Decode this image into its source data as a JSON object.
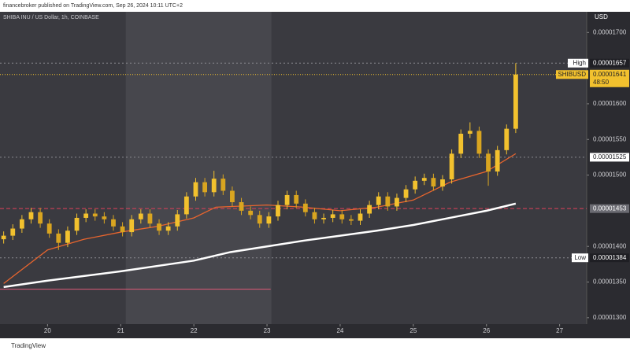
{
  "header": "financebroker published on TradingView.com, Sep 26, 2024 10:11 UTC+2",
  "footer": "TradingView",
  "chart_data": {
    "type": "candlestick",
    "title": "SHIBA INU / US Dollar, 1h, COINBASE",
    "currency": "USD",
    "up_color": "#f2c12e",
    "down_color": "#d9a520",
    "x": [
      19.4,
      19.525,
      19.65,
      19.775,
      19.9,
      20.025,
      20.15,
      20.275,
      20.4,
      20.525,
      20.65,
      20.775,
      20.9,
      21.025,
      21.15,
      21.275,
      21.4,
      21.525,
      21.65,
      21.775,
      21.9,
      22.025,
      22.15,
      22.275,
      22.4,
      22.525,
      22.65,
      22.775,
      22.9,
      23.025,
      23.15,
      23.275,
      23.4,
      23.525,
      23.65,
      23.775,
      23.9,
      24.025,
      24.15,
      24.275,
      24.4,
      24.525,
      24.65,
      24.775,
      24.9,
      25.025,
      25.15,
      25.275,
      25.4,
      25.525,
      25.65,
      25.775,
      25.9,
      26.025,
      26.15,
      26.275,
      26.4
    ],
    "open": [
      1.41e-05,
      1.415e-05,
      1.425e-05,
      1.438e-05,
      1.448e-05,
      1.432e-05,
      1.418e-05,
      1.405e-05,
      1.422e-05,
      1.44e-05,
      1.446e-05,
      1.442e-05,
      1.438e-05,
      1.428e-05,
      1.42e-05,
      1.438e-05,
      1.446e-05,
      1.432e-05,
      1.422e-05,
      1.428e-05,
      1.445e-05,
      1.47e-05,
      1.49e-05,
      1.476e-05,
      1.495e-05,
      1.478e-05,
      1.462e-05,
      1.45e-05,
      1.444e-05,
      1.432e-05,
      1.442e-05,
      1.458e-05,
      1.472e-05,
      1.46e-05,
      1.448e-05,
      1.438e-05,
      1.44e-05,
      1.445e-05,
      1.438e-05,
      1.436e-05,
      1.446e-05,
      1.458e-05,
      1.47e-05,
      1.456e-05,
      1.468e-05,
      1.48e-05,
      1.492e-05,
      1.496e-05,
      1.484e-05,
      1.494e-05,
      1.53e-05,
      1.558e-05,
      1.562e-05,
      1.53e-05,
      1.505e-05,
      1.535e-05,
      1.565e-05
    ],
    "high": [
      1.421e-05,
      1.431e-05,
      1.444e-05,
      1.454e-05,
      1.454e-05,
      1.438e-05,
      1.424e-05,
      1.428e-05,
      1.446e-05,
      1.452e-05,
      1.452e-05,
      1.448e-05,
      1.444e-05,
      1.434e-05,
      1.444e-05,
      1.452e-05,
      1.452e-05,
      1.438e-05,
      1.434e-05,
      1.451e-05,
      1.476e-05,
      1.496e-05,
      1.496e-05,
      1.506e-05,
      1.501e-05,
      1.484e-05,
      1.468e-05,
      1.456e-05,
      1.45e-05,
      1.448e-05,
      1.464e-05,
      1.478e-05,
      1.478e-05,
      1.466e-05,
      1.454e-05,
      1.446e-05,
      1.451e-05,
      1.451e-05,
      1.444e-05,
      1.452e-05,
      1.464e-05,
      1.476e-05,
      1.476e-05,
      1.474e-05,
      1.486e-05,
      1.498e-05,
      1.502e-05,
      1.502e-05,
      1.5e-05,
      1.536e-05,
      1.564e-05,
      1.574e-05,
      1.568e-05,
      1.536e-05,
      1.541e-05,
      1.571e-05,
      1.657e-05
    ],
    "low": [
      1.404e-05,
      1.409e-05,
      1.419e-05,
      1.432e-05,
      1.426e-05,
      1.412e-05,
      1.395e-05,
      1.399e-05,
      1.416e-05,
      1.434e-05,
      1.436e-05,
      1.432e-05,
      1.422e-05,
      1.414e-05,
      1.414e-05,
      1.432e-05,
      1.426e-05,
      1.416e-05,
      1.416e-05,
      1.422e-05,
      1.439e-05,
      1.464e-05,
      1.47e-05,
      1.47e-05,
      1.472e-05,
      1.456e-05,
      1.444e-05,
      1.438e-05,
      1.426e-05,
      1.426e-05,
      1.436e-05,
      1.452e-05,
      1.454e-05,
      1.442e-05,
      1.432e-05,
      1.432e-05,
      1.434e-05,
      1.432e-05,
      1.43e-05,
      1.43e-05,
      1.44e-05,
      1.452e-05,
      1.45e-05,
      1.45e-05,
      1.462e-05,
      1.474e-05,
      1.486e-05,
      1.478e-05,
      1.478e-05,
      1.488e-05,
      1.524e-05,
      1.552e-05,
      1.524e-05,
      1.485e-05,
      1.499e-05,
      1.529e-05,
      1.559e-05
    ],
    "close": [
      1.415e-05,
      1.425e-05,
      1.438e-05,
      1.448e-05,
      1.432e-05,
      1.418e-05,
      1.405e-05,
      1.422e-05,
      1.44e-05,
      1.446e-05,
      1.442e-05,
      1.438e-05,
      1.428e-05,
      1.42e-05,
      1.438e-05,
      1.446e-05,
      1.432e-05,
      1.422e-05,
      1.428e-05,
      1.445e-05,
      1.47e-05,
      1.49e-05,
      1.476e-05,
      1.495e-05,
      1.478e-05,
      1.462e-05,
      1.45e-05,
      1.444e-05,
      1.432e-05,
      1.442e-05,
      1.458e-05,
      1.472e-05,
      1.46e-05,
      1.448e-05,
      1.438e-05,
      1.44e-05,
      1.445e-05,
      1.438e-05,
      1.436e-05,
      1.446e-05,
      1.458e-05,
      1.47e-05,
      1.456e-05,
      1.468e-05,
      1.48e-05,
      1.492e-05,
      1.496e-05,
      1.484e-05,
      1.494e-05,
      1.53e-05,
      1.558e-05,
      1.562e-05,
      1.53e-05,
      1.505e-05,
      1.535e-05,
      1.565e-05,
      1.641e-05
    ],
    "lines": [
      {
        "color": "#e8652e",
        "x": [
          19.4,
          20,
          20.5,
          21,
          21.5,
          22,
          22.3,
          23,
          23.5,
          24,
          24.5,
          25,
          25.5,
          26,
          26.4
        ],
        "values": [
          1.348e-05,
          1.395e-05,
          1.41e-05,
          1.42e-05,
          1.428e-05,
          1.44e-05,
          1.455e-05,
          1.458e-05,
          1.455e-05,
          1.45e-05,
          1.455e-05,
          1.465e-05,
          1.49e-05,
          1.505e-05,
          1.53e-05
        ]
      },
      {
        "color": "#ffffff",
        "x": [
          19.4,
          20,
          21,
          22,
          22.5,
          23,
          23.5,
          24,
          24.5,
          25,
          25.5,
          26,
          26.4
        ],
        "values": [
          1.343e-05,
          1.352e-05,
          1.365e-05,
          1.38e-05,
          1.392e-05,
          1.4e-05,
          1.408e-05,
          1.415e-05,
          1.422e-05,
          1.43e-05,
          1.44e-05,
          1.45e-05,
          1.46e-05
        ]
      }
    ],
    "levels": [
      {
        "value": 1.657e-05,
        "color": "#8a8a90",
        "dash": "2,3"
      },
      {
        "value": 1.641e-05,
        "color": "#f2c12e",
        "dash": "1,2"
      },
      {
        "value": 1.525e-05,
        "color": "#8a8a90",
        "dash": "2,3"
      },
      {
        "value": 1.453e-05,
        "color": "#e0405a",
        "dash": "5,3"
      },
      {
        "value": 1.384e-05,
        "color": "#8a8a90",
        "dash": "2,3"
      },
      {
        "value": 1.34e-05,
        "color": "#e05a78",
        "dash": "none",
        "x_range": [
          19.35,
          23.05
        ]
      }
    ],
    "highlight_x": [
      21.07,
      23.06
    ],
    "price_labels": [
      {
        "name": "High",
        "value": 1.657e-05,
        "bg": "#1f1f24",
        "fg": "#ffffff"
      },
      {
        "name": "SHIBUSD",
        "value": 1.641e-05,
        "countdown": "48:50",
        "bg": "#f2c12e",
        "fg": "#1f1f24"
      },
      {
        "value": 1.525e-05,
        "bg": "#ffffff",
        "fg": "#1f1f24"
      },
      {
        "value": 1.453e-05,
        "bg": "#6b6b72",
        "fg": "#ffffff"
      },
      {
        "name": "Low",
        "value": 1.384e-05,
        "bg": "#1f1f24",
        "fg": "#ffffff"
      }
    ],
    "xlim": [
      19.35,
      27.37
    ],
    "ylim": [
      1.291e-05,
      1.729e-05
    ],
    "xticks": [
      20,
      21,
      22,
      23,
      24,
      25,
      26,
      27
    ],
    "yticks": [
      {
        "value": 1.3e-05,
        "label": "0.00001300"
      },
      {
        "value": 1.35e-05,
        "label": "0.00001350"
      },
      {
        "value": 1.4e-05,
        "label": "0.00001400"
      },
      {
        "value": 1.5e-05,
        "label": "0.00001500"
      },
      {
        "value": 1.55e-05,
        "label": "0.00001550"
      },
      {
        "value": 1.6e-05,
        "label": "0.00001600"
      },
      {
        "value": 1.7e-05,
        "label": "0.00001700"
      }
    ],
    "background": "#3a3a40"
  }
}
